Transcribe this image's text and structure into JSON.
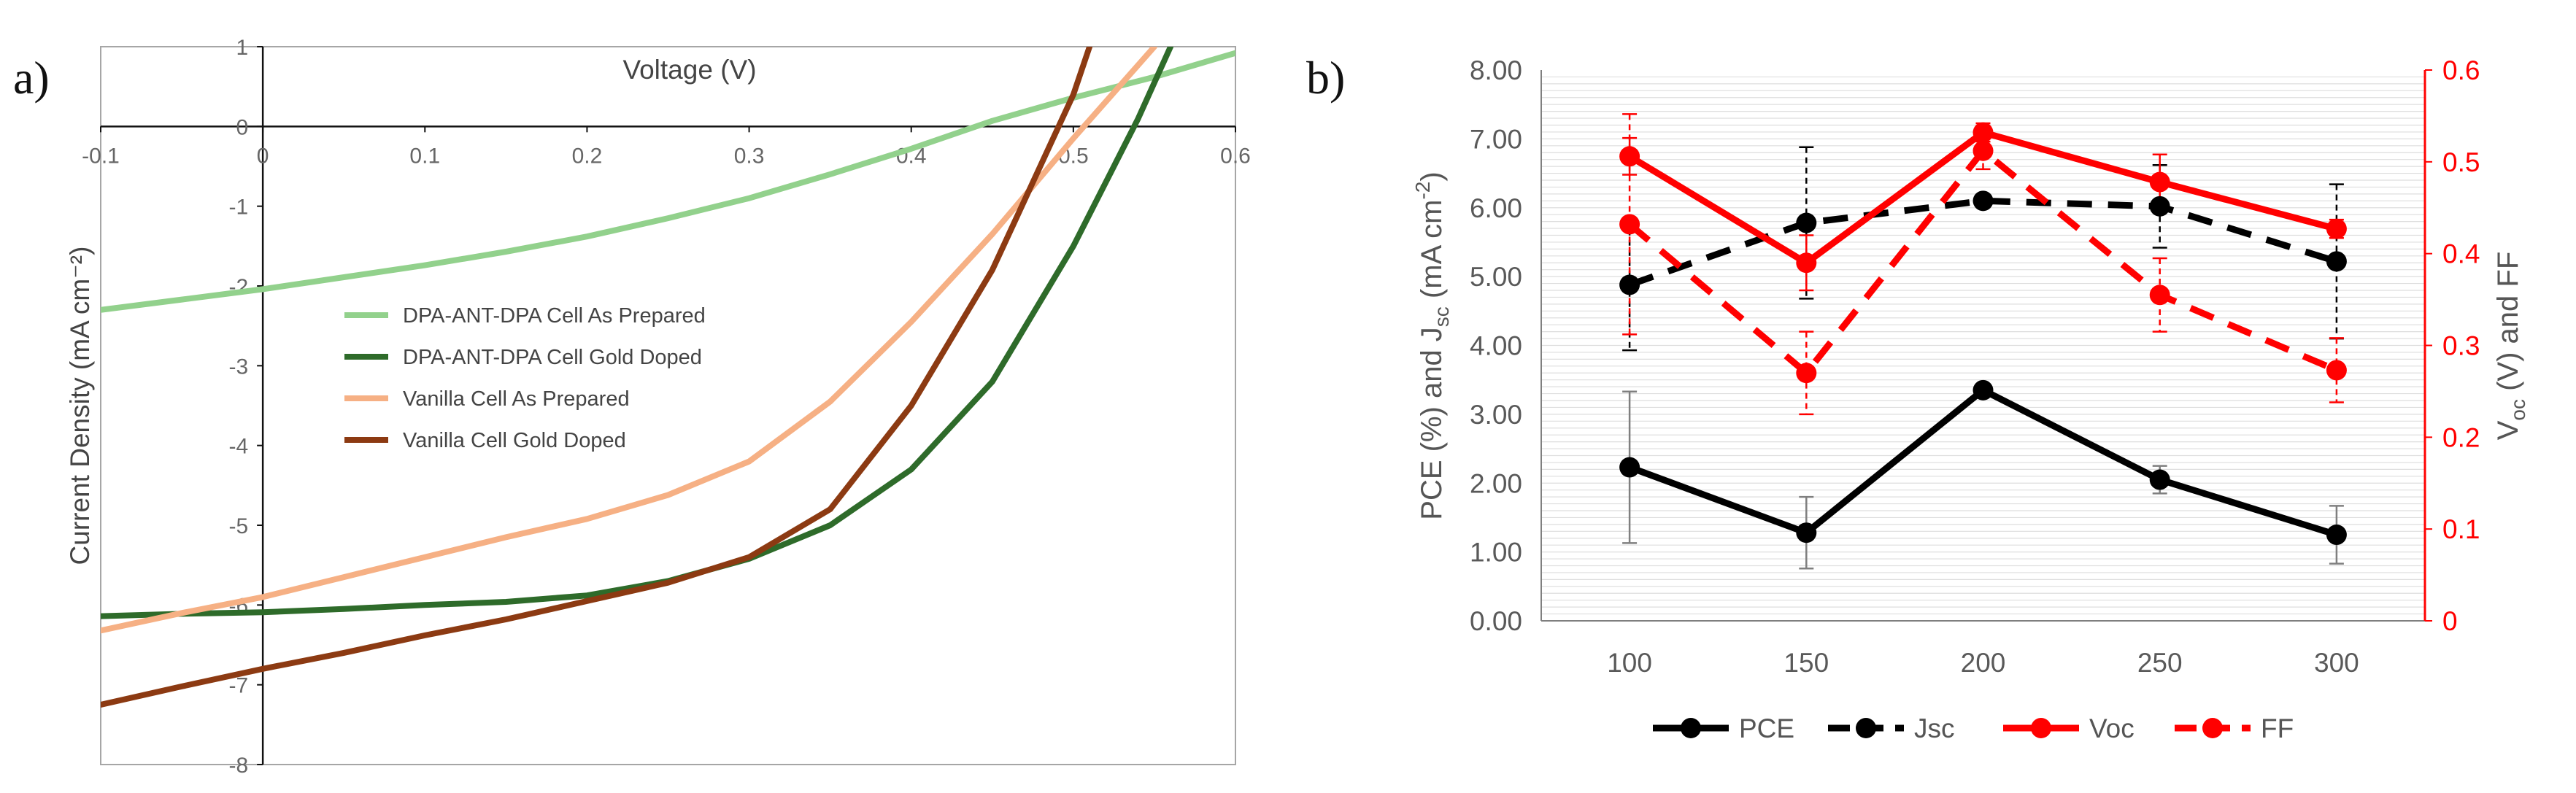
{
  "figure": {
    "label_a": "a)",
    "label_b": "b)"
  },
  "chart_data": [
    {
      "type": "line",
      "panel": "a",
      "title": "",
      "xlabel": "Voltage (V)",
      "ylabel": "Current Density (mA cm⁻²)",
      "xlim": [
        -0.1,
        0.6
      ],
      "ylim": [
        -8,
        1
      ],
      "x_ticks": [
        "-0.1",
        "0",
        "0.1",
        "0.2",
        "0.3",
        "0.4",
        "0.5",
        "0.6"
      ],
      "y_ticks": [
        "1",
        "0",
        "-1",
        "-2",
        "-3",
        "-4",
        "-5",
        "-6",
        "-7",
        "-8"
      ],
      "grid": false,
      "legend_position": "center-left",
      "series": [
        {
          "name": "DPA-ANT-DPA Cell As Prepared",
          "color": "#92d18c",
          "x": [
            -0.1,
            -0.05,
            0,
            0.05,
            0.1,
            0.15,
            0.2,
            0.25,
            0.3,
            0.35,
            0.4,
            0.45,
            0.5,
            0.55,
            0.6
          ],
          "y": [
            -2.3,
            -2.17,
            -2.04,
            -1.89,
            -1.74,
            -1.57,
            -1.38,
            -1.15,
            -0.9,
            -0.6,
            -0.28,
            0.07,
            0.36,
            0.62,
            0.92
          ]
        },
        {
          "name": "DPA-ANT-DPA Cell Gold Doped",
          "color": "#2e6b2a",
          "x": [
            -0.1,
            -0.05,
            0,
            0.05,
            0.1,
            0.15,
            0.2,
            0.25,
            0.3,
            0.35,
            0.4,
            0.45,
            0.5,
            0.52,
            0.54,
            0.56
          ],
          "y": [
            -6.14,
            -6.11,
            -6.09,
            -6.05,
            -6.0,
            -5.96,
            -5.88,
            -5.7,
            -5.42,
            -5.0,
            -4.3,
            -3.2,
            -1.5,
            -0.7,
            0.1,
            1.0
          ]
        },
        {
          "name": "Vanilla Cell As Prepared",
          "color": "#f6b084",
          "x": [
            -0.1,
            -0.05,
            0,
            0.05,
            0.1,
            0.15,
            0.2,
            0.25,
            0.3,
            0.35,
            0.4,
            0.45,
            0.5,
            0.55
          ],
          "y": [
            -6.32,
            -6.1,
            -5.9,
            -5.65,
            -5.4,
            -5.15,
            -4.92,
            -4.62,
            -4.2,
            -3.45,
            -2.45,
            -1.35,
            -0.15,
            1.0
          ]
        },
        {
          "name": "Vanilla Cell Gold Doped",
          "color": "#8c3a12",
          "x": [
            -0.1,
            -0.05,
            0,
            0.05,
            0.1,
            0.15,
            0.2,
            0.25,
            0.3,
            0.35,
            0.4,
            0.45,
            0.5,
            0.51
          ],
          "y": [
            -7.25,
            -7.02,
            -6.8,
            -6.6,
            -6.38,
            -6.18,
            -5.95,
            -5.72,
            -5.4,
            -4.8,
            -3.5,
            -1.8,
            0.4,
            1.0
          ]
        }
      ]
    },
    {
      "type": "line",
      "panel": "b",
      "title": "",
      "xlabel": "",
      "ylabel_left": "PCE (%) and J",
      "ylabel_left_sub": "sc",
      "ylabel_left_tail": " (mA cm",
      "ylabel_left_sup": "-2",
      "ylabel_left_end": ")",
      "ylabel_right": "V",
      "ylabel_right_sub": "oc",
      "ylabel_right_tail": " (V) and FF",
      "categories": [
        "100",
        "150",
        "200",
        "250",
        "300"
      ],
      "ylim_left": [
        0,
        8
      ],
      "ylim_right": [
        0,
        0.6
      ],
      "y_ticks_left": [
        "0.00",
        "1.00",
        "2.00",
        "3.00",
        "4.00",
        "5.00",
        "6.00",
        "7.00",
        "8.00"
      ],
      "y_ticks_right": [
        "0",
        "0.1",
        "0.2",
        "0.3",
        "0.4",
        "0.5",
        "0.6"
      ],
      "grid": true,
      "legend_position": "bottom",
      "series": [
        {
          "name": "PCE",
          "axis": "left",
          "color": "#000000",
          "dashed": false,
          "values": [
            2.23,
            1.28,
            3.35,
            2.05,
            1.25
          ],
          "err": [
            1.1,
            0.52,
            0.05,
            0.2,
            0.42
          ]
        },
        {
          "name": "Jsc",
          "axis": "left",
          "color": "#000000",
          "dashed": true,
          "values": [
            4.88,
            5.78,
            6.1,
            6.02,
            5.22
          ],
          "err": [
            0.95,
            1.1,
            0.05,
            0.6,
            1.12
          ]
        },
        {
          "name": "Voc",
          "axis": "right",
          "color": "#ff0000",
          "dashed": false,
          "values": [
            0.506,
            0.39,
            0.532,
            0.478,
            0.427
          ],
          "err": [
            0.02,
            0.03,
            0.01,
            0.03,
            0.01
          ]
        },
        {
          "name": "FF",
          "axis": "right",
          "color": "#ff0000",
          "dashed": true,
          "values": [
            0.432,
            0.27,
            0.512,
            0.355,
            0.273
          ],
          "err": [
            0.12,
            0.045,
            0.02,
            0.04,
            0.035
          ]
        }
      ]
    }
  ]
}
